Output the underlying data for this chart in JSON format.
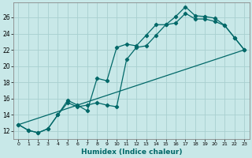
{
  "xlabel": "Humidex (Indice chaleur)",
  "bg_color": "#c8e8e8",
  "grid_color": "#a8d0d0",
  "line_color": "#006868",
  "xlim": [
    -0.5,
    23.5
  ],
  "ylim": [
    11.0,
    27.8
  ],
  "xticks": [
    0,
    1,
    2,
    3,
    4,
    5,
    6,
    7,
    8,
    9,
    10,
    11,
    12,
    13,
    14,
    15,
    16,
    17,
    18,
    19,
    20,
    21,
    22,
    23
  ],
  "yticks": [
    12,
    14,
    16,
    18,
    20,
    22,
    24,
    26
  ],
  "line1_x": [
    0,
    1,
    2,
    3,
    4,
    5,
    6,
    7,
    8,
    9,
    10,
    11,
    12,
    13,
    14,
    15,
    16,
    17,
    18,
    19,
    20,
    21,
    22,
    23
  ],
  "line1_y": [
    12.8,
    12.1,
    11.8,
    12.3,
    14.0,
    15.8,
    15.2,
    14.5,
    18.5,
    18.2,
    22.3,
    22.7,
    22.5,
    23.8,
    25.1,
    25.1,
    26.1,
    27.3,
    26.2,
    26.1,
    25.9,
    25.0,
    23.5,
    22.0
  ],
  "line2_x": [
    0,
    1,
    2,
    3,
    4,
    5,
    6,
    7,
    8,
    9,
    10,
    11,
    12,
    13,
    14,
    15,
    16,
    17,
    18,
    19,
    20,
    21,
    22,
    23
  ],
  "line2_y": [
    12.8,
    12.1,
    11.8,
    12.3,
    14.0,
    15.5,
    15.0,
    15.2,
    15.5,
    15.2,
    15.0,
    20.8,
    22.3,
    22.5,
    23.8,
    25.1,
    25.3,
    26.5,
    25.8,
    25.8,
    25.5,
    25.0,
    23.5,
    22.0
  ],
  "line3_x": [
    0,
    23
  ],
  "line3_y": [
    12.8,
    22.0
  ]
}
